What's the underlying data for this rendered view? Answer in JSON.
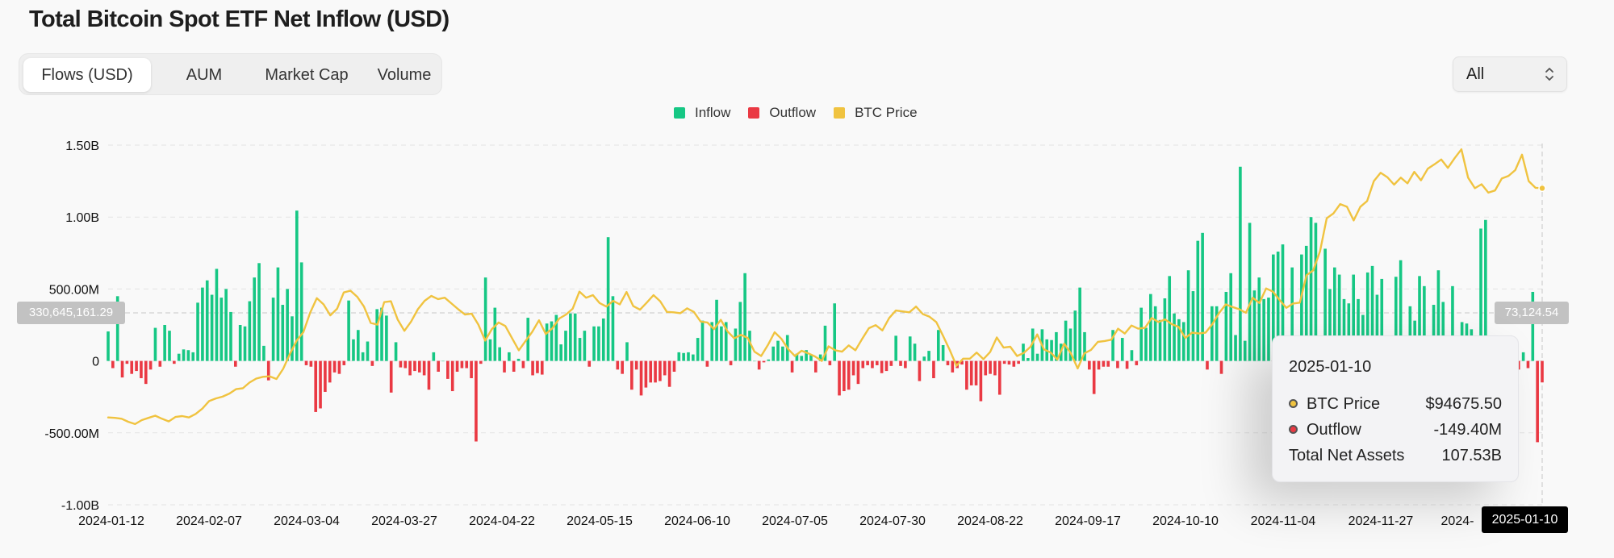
{
  "page": {
    "title": "Total Bitcoin Spot ETF Net Inflow (USD)"
  },
  "tabs": [
    {
      "label": "Flows (USD)",
      "active": true
    },
    {
      "label": "AUM",
      "active": false
    },
    {
      "label": "Market Cap",
      "active": false
    },
    {
      "label": "Volume",
      "active": false
    }
  ],
  "range_select": {
    "value": "All",
    "icon": "updown-chevron-icon"
  },
  "legend": [
    {
      "label": "Inflow",
      "color": "#16c784"
    },
    {
      "label": "Outflow",
      "color": "#ea3943"
    },
    {
      "label": "BTC Price",
      "color": "#f0c340"
    }
  ],
  "crosshair": {
    "left_value": "330,645,161.29",
    "right_value": "73,124.54",
    "date": "2025-01-10"
  },
  "tooltip": {
    "date": "2025-01-10",
    "rows": [
      {
        "label": "BTC Price",
        "value": "$94675.50",
        "color": "#f0c340"
      },
      {
        "label": "Outflow",
        "value": "-149.40M",
        "color": "#ea3943"
      },
      {
        "label": "Total Net Assets",
        "value": "107.53B"
      }
    ]
  },
  "chart_data": {
    "type": "bar",
    "title": "Total Bitcoin Spot ETF Net Inflow (USD)",
    "y_ticks": [
      "1.50B",
      "1.00B",
      "500.00M",
      "0",
      "-500.00M",
      "-1.00B"
    ],
    "ylim": [
      -1000,
      1500
    ],
    "y_unit": "M USD",
    "x_ticks": [
      "2024-01-12",
      "2024-02-07",
      "2024-03-04",
      "2024-03-27",
      "2024-04-22",
      "2024-05-15",
      "2024-06-10",
      "2024-07-05",
      "2024-07-30",
      "2024-08-22",
      "2024-09-17",
      "2024-10-10",
      "2024-11-04",
      "2024-11-27",
      "2024-",
      "2025-01-10"
    ],
    "grid": true,
    "legend_position": "top-center",
    "series": [
      {
        "name": "Inflow/Outflow",
        "values": [
          205,
          -50,
          450,
          -115,
          -20,
          -90,
          -70,
          -120,
          -160,
          -60,
          230,
          -40,
          250,
          210,
          -20,
          50,
          80,
          75,
          60,
          405,
          510,
          560,
          460,
          640,
          440,
          500,
          340,
          -40,
          250,
          240,
          415,
          580,
          680,
          105,
          -135,
          440,
          650,
          390,
          500,
          310,
          1045,
          685,
          -30,
          -40,
          -355,
          -330,
          -215,
          -150,
          -80,
          -90,
          -30,
          420,
          150,
          215,
          60,
          135,
          -35,
          360,
          370,
          315,
          -220,
          130,
          -45,
          -50,
          -100,
          -70,
          -80,
          -100,
          -200,
          60,
          -75,
          0,
          -125,
          -210,
          -75,
          -50,
          -50,
          -120,
          -560,
          -20,
          580,
          150,
          370,
          95,
          -80,
          60,
          -75,
          15,
          -50,
          300,
          -100,
          -85,
          -95,
          260,
          275,
          320,
          115,
          210,
          330,
          330,
          160,
          210,
          -40,
          240,
          240,
          295,
          860,
          450,
          -60,
          -90,
          130,
          -200,
          -60,
          -240,
          -185,
          -150,
          -150,
          -140,
          -100,
          -180,
          -75,
          60,
          55,
          60,
          45,
          160,
          280,
          -40,
          270,
          425,
          240,
          270,
          -30,
          225,
          410,
          610,
          210,
          0,
          -60,
          -10,
          10,
          100,
          140,
          100,
          180,
          -80,
          50,
          35,
          75,
          45,
          -80,
          45,
          245,
          -30,
          400,
          -240,
          -210,
          -200,
          -100,
          -160,
          -50,
          -30,
          -50,
          -30,
          -85,
          -70,
          -35,
          175,
          -35,
          -50,
          170,
          120,
          -140,
          30,
          70,
          -120,
          215,
          110,
          -30,
          -80,
          -50,
          -25,
          -200,
          -170,
          -170,
          -280,
          -100,
          -90,
          -100,
          -235,
          -20,
          -25,
          -40,
          -20,
          120,
          20,
          225,
          50,
          220,
          150,
          145,
          200,
          120,
          280,
          225,
          350,
          510,
          200,
          -60,
          -230,
          -60,
          -40,
          -40,
          215,
          -50,
          160,
          -55,
          75,
          -30,
          370,
          230,
          465,
          380,
          285,
          435,
          590,
          330,
          290,
          270,
          630,
          485,
          835,
          890,
          -60,
          380,
          380,
          -90,
          480,
          610,
          180,
          1350,
          140,
          960,
          490,
          580,
          430,
          440,
          740,
          760,
          810,
          30,
          650,
          100,
          740,
          800,
          1000,
          960,
          -60,
          780,
          500,
          650,
          600,
          430,
          400,
          600,
          430,
          320,
          615,
          660,
          460,
          570,
          130,
          -70,
          585,
          700,
          -25,
          380,
          280,
          590,
          520,
          -20,
          390,
          630,
          410,
          -25,
          520,
          -30,
          270,
          260,
          220,
          0,
          920,
          980,
          -120,
          -25,
          -150,
          -30,
          -65,
          -175,
          -60,
          60,
          -50,
          480,
          -565,
          -149.4
        ],
        "colors_by_sign": {
          "positive": "#16c784",
          "negative": "#ea3943"
        }
      },
      {
        "name": "BTC Price",
        "price_range": [
          40000,
          105000
        ],
        "values": [
          42800,
          42700,
          42500,
          41800,
          41300,
          42200,
          42700,
          43200,
          42500,
          41900,
          42900,
          43100,
          42800,
          43600,
          44800,
          46500,
          47100,
          47500,
          48200,
          49200,
          49400,
          50700,
          51600,
          52000,
          52100,
          51500,
          53800,
          57200,
          60200,
          62100,
          66500,
          69800,
          68400,
          65900,
          67400,
          71100,
          71500,
          70100,
          67900,
          64200,
          63800,
          68900,
          69100,
          65000,
          62400,
          64500,
          67300,
          69200,
          70300,
          69600,
          69900,
          68600,
          67300,
          66100,
          66300,
          63800,
          60200,
          62800,
          64300,
          63500,
          60700,
          58000,
          60100,
          62200,
          64800,
          61700,
          63000,
          65200,
          66100,
          67400,
          71300,
          69900,
          70500,
          68700,
          67900,
          69200,
          68400,
          71200,
          68000,
          67200,
          68800,
          70500,
          69100,
          66700,
          66600,
          66400,
          67500,
          66700,
          64500,
          64300,
          62800,
          64900,
          62300,
          60700,
          61500,
          60800,
          57700,
          56700,
          59200,
          62100,
          60600,
          58300,
          56700,
          57900,
          57300,
          56600,
          55600,
          58900,
          58000,
          57700,
          59100,
          58000,
          60600,
          63000,
          63700,
          62500,
          65300,
          67000,
          66800,
          66600,
          67900,
          66200,
          65600,
          64400,
          61300,
          58100,
          54500,
          56100,
          56100,
          57500,
          56000,
          57600,
          60900,
          58600,
          58800,
          56700,
          57400,
          58800,
          61600,
          58200,
          57500,
          55900,
          59500,
          57300,
          53900,
          57300,
          58100,
          59900,
          60100,
          60400,
          62900,
          61800,
          63600,
          62900,
          63100,
          65300,
          64400,
          65000,
          63900,
          63300,
          60800,
          62000,
          61800,
          62000,
          63900,
          66400,
          68400,
          67800,
          67300,
          66500,
          69900,
          68700,
          72000,
          71300,
          69400,
          67600,
          68600,
          68800,
          75000,
          76100,
          80400,
          87900,
          89000,
          91100,
          90500,
          87400,
          90500,
          91800,
          96300,
          98200,
          97200,
          95500,
          97100,
          95800,
          98400,
          96500,
          99100,
          100100,
          101200,
          99300,
          101500,
          103500,
          97100,
          94700,
          95600,
          93700,
          94200,
          96900,
          97500,
          98800,
          102300,
          96300,
          94800,
          94700
        ]
      }
    ]
  }
}
